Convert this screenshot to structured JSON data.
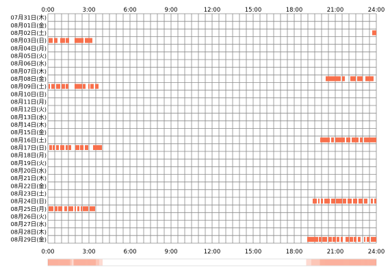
{
  "chart_data": {
    "type": "heatmap",
    "title": "",
    "xlabel": "",
    "ylabel": "",
    "xlim": [
      0,
      24
    ],
    "x_ticks": [
      "0:00",
      "3:00",
      "6:00",
      "9:00",
      "12:00",
      "15:00",
      "18:00",
      "21:00",
      "24:00"
    ],
    "grid": true,
    "rows": [
      {
        "label": "07月31日(木)",
        "intervals": []
      },
      {
        "label": "08月01日(金)",
        "intervals": []
      },
      {
        "label": "08月02日(土)",
        "intervals": [
          [
            23.7,
            24.0
          ]
        ]
      },
      {
        "label": "08月03日(日)",
        "intervals": [
          [
            0.05,
            0.35
          ],
          [
            0.45,
            0.7
          ],
          [
            0.9,
            1.25
          ],
          [
            1.3,
            1.55
          ],
          [
            1.95,
            2.6
          ],
          [
            2.7,
            3.25
          ]
        ]
      },
      {
        "label": "08月04日(月)",
        "intervals": []
      },
      {
        "label": "08月05日(火)",
        "intervals": []
      },
      {
        "label": "08月06日(水)",
        "intervals": []
      },
      {
        "label": "08月07日(木)",
        "intervals": []
      },
      {
        "label": "08月08日(金)",
        "intervals": [
          [
            20.3,
            21.4
          ],
          [
            21.5,
            21.7
          ],
          [
            22.1,
            22.5
          ],
          [
            22.6,
            23.0
          ],
          [
            23.2,
            23.8
          ]
        ]
      },
      {
        "label": "08月09日(土)",
        "intervals": [
          [
            0.05,
            0.15
          ],
          [
            0.25,
            0.5
          ],
          [
            0.6,
            0.9
          ],
          [
            1.0,
            1.25
          ],
          [
            1.3,
            1.5
          ],
          [
            1.95,
            2.5
          ],
          [
            2.55,
            2.75
          ],
          [
            2.95,
            3.05
          ],
          [
            3.1,
            3.35
          ],
          [
            3.45,
            3.7
          ]
        ]
      },
      {
        "label": "08月10日(日)",
        "intervals": []
      },
      {
        "label": "08月11日(月)",
        "intervals": []
      },
      {
        "label": "08月12日(火)",
        "intervals": []
      },
      {
        "label": "08月13日(水)",
        "intervals": []
      },
      {
        "label": "08月14日(木)",
        "intervals": []
      },
      {
        "label": "08月15日(金)",
        "intervals": []
      },
      {
        "label": "08月16日(土)",
        "intervals": [
          [
            19.9,
            20.6
          ],
          [
            20.7,
            20.9
          ],
          [
            21.0,
            21.7
          ],
          [
            21.8,
            22.1
          ],
          [
            22.2,
            22.7
          ],
          [
            22.8,
            23.0
          ],
          [
            23.1,
            24.0
          ]
        ]
      },
      {
        "label": "08月17日(日)",
        "intervals": [
          [
            0.1,
            0.3
          ],
          [
            0.35,
            0.5
          ],
          [
            0.6,
            0.8
          ],
          [
            0.9,
            1.2
          ],
          [
            1.3,
            1.45
          ],
          [
            1.5,
            1.7
          ],
          [
            2.0,
            2.3
          ],
          [
            2.35,
            2.6
          ],
          [
            2.7,
            2.95
          ],
          [
            3.3,
            3.95
          ]
        ]
      },
      {
        "label": "08月18日(月)",
        "intervals": []
      },
      {
        "label": "08月19日(火)",
        "intervals": []
      },
      {
        "label": "08月20日(水)",
        "intervals": []
      },
      {
        "label": "08月21日(木)",
        "intervals": []
      },
      {
        "label": "08月22日(金)",
        "intervals": []
      },
      {
        "label": "08月23日(土)",
        "intervals": []
      },
      {
        "label": "08月24日(日)",
        "intervals": [
          [
            19.35,
            19.65
          ],
          [
            19.75,
            19.85
          ],
          [
            19.95,
            20.1
          ],
          [
            20.2,
            20.6
          ],
          [
            20.7,
            21.0
          ],
          [
            21.05,
            21.5
          ],
          [
            21.55,
            21.8
          ],
          [
            21.9,
            22.2
          ],
          [
            22.3,
            22.6
          ],
          [
            22.7,
            23.0
          ],
          [
            23.1,
            23.35
          ],
          [
            23.6,
            23.75
          ],
          [
            23.85,
            24.0
          ]
        ]
      },
      {
        "label": "08月25日(月)",
        "intervals": [
          [
            0.05,
            0.4
          ],
          [
            0.5,
            0.7
          ],
          [
            0.75,
            1.05
          ],
          [
            1.2,
            1.4
          ],
          [
            1.5,
            1.85
          ],
          [
            1.95,
            2.05
          ],
          [
            2.15,
            2.3
          ],
          [
            2.4,
            2.5
          ],
          [
            2.55,
            2.95
          ],
          [
            3.05,
            3.45
          ]
        ]
      },
      {
        "label": "08月26日(火)",
        "intervals": []
      },
      {
        "label": "08月27日(水)",
        "intervals": []
      },
      {
        "label": "08月28日(木)",
        "intervals": []
      },
      {
        "label": "08月29日(金)",
        "intervals": [
          [
            18.95,
            19.75
          ],
          [
            19.8,
            20.0
          ],
          [
            20.05,
            20.4
          ],
          [
            20.5,
            20.75
          ],
          [
            20.8,
            21.05
          ],
          [
            21.1,
            21.3
          ],
          [
            21.4,
            21.55
          ],
          [
            21.75,
            22.0
          ],
          [
            22.05,
            22.3
          ],
          [
            22.35,
            22.55
          ],
          [
            22.65,
            22.85
          ],
          [
            23.1,
            23.2
          ],
          [
            23.3,
            23.5
          ],
          [
            23.6,
            24.0
          ]
        ]
      }
    ],
    "colors": {
      "bar": "#f8704c",
      "grid": "#888888",
      "summary_strip": "#f8704c"
    }
  }
}
